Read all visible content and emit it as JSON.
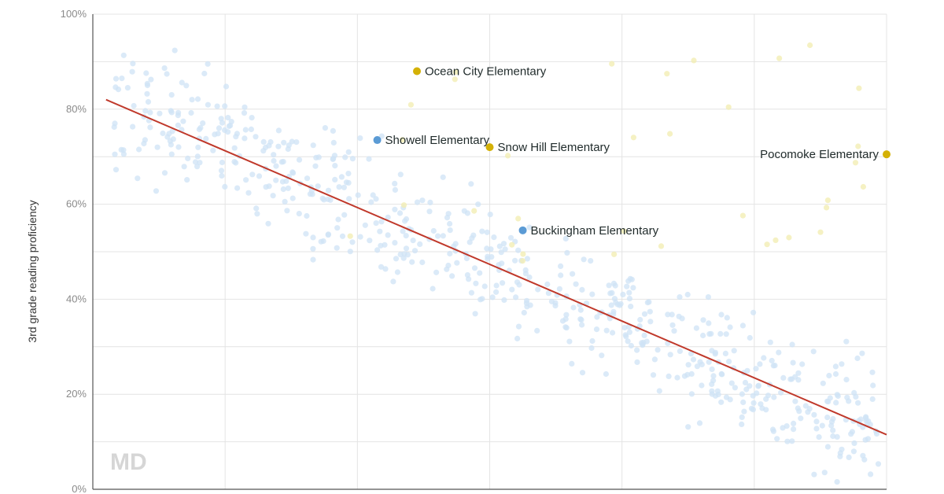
{
  "chart_data": {
    "type": "scatter",
    "title": "",
    "xlabel": "",
    "ylabel": "3rd grade reading proficiency",
    "y_ticks": [
      "0%",
      "20%",
      "40%",
      "60%",
      "80%",
      "100%"
    ],
    "xlim": [
      0,
      6
    ],
    "ylim": [
      0,
      100
    ],
    "grid": true,
    "watermark": "MD",
    "colors": {
      "background_points": "#cfe3f5",
      "background_highlight": "#f3eeb4",
      "blue_point": "#5b9bd5",
      "yellow_point": "#d4b106",
      "trend_line": "#c0392b"
    },
    "trend_line": {
      "x": [
        0.1,
        6.0
      ],
      "y": [
        82,
        11.5
      ]
    },
    "highlighted_points": [
      {
        "name": "Ocean City Elementary",
        "x": 2.45,
        "y": 88,
        "group": "yellow"
      },
      {
        "name": "Showell Elementary",
        "x": 2.15,
        "y": 73.5,
        "group": "blue"
      },
      {
        "name": "Snow Hill Elementary",
        "x": 3.0,
        "y": 72,
        "group": "yellow"
      },
      {
        "name": "Pocomoke Elementary",
        "x": 6.0,
        "y": 70.5,
        "group": "yellow"
      },
      {
        "name": "Buckingham Elementary",
        "x": 3.25,
        "y": 54.5,
        "group": "blue"
      }
    ]
  }
}
